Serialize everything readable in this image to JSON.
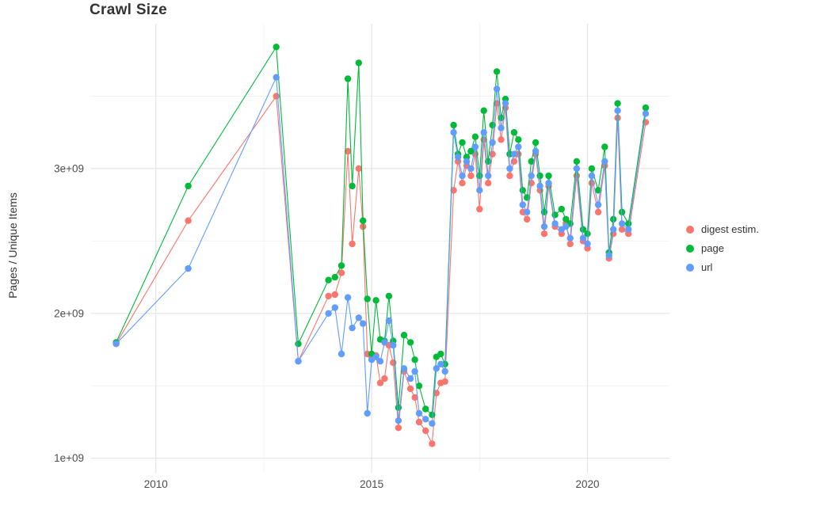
{
  "chart_data": {
    "type": "line",
    "title": "Crawl Size",
    "ylabel": "Pages / Unique Items",
    "xlabel": "",
    "legend_position": "right",
    "grid": true,
    "values_unit": "billions (1e+09)",
    "xlim": [
      2008.5,
      2021.9
    ],
    "ylim": [
      0.9,
      4.0
    ],
    "x_ticks": [
      {
        "v": 2010,
        "label": "2010"
      },
      {
        "v": 2015,
        "label": "2015"
      },
      {
        "v": 2020,
        "label": "2020"
      }
    ],
    "y_ticks": [
      {
        "v": 1,
        "label": "1e+09"
      },
      {
        "v": 2,
        "label": "2e+09"
      },
      {
        "v": 3,
        "label": "3e+09"
      }
    ],
    "x_minor": [
      2012.5,
      2017.5
    ],
    "y_minor": [
      1.5,
      2.5,
      3.5
    ],
    "x": [
      2009.08,
      2010.75,
      2012.79,
      2013.3,
      2014.0,
      2014.15,
      2014.3,
      2014.45,
      2014.55,
      2014.7,
      2014.8,
      2014.9,
      2015.0,
      2015.1,
      2015.2,
      2015.3,
      2015.4,
      2015.5,
      2015.62,
      2015.75,
      2015.9,
      2016.0,
      2016.1,
      2016.25,
      2016.4,
      2016.5,
      2016.6,
      2016.7,
      2016.9,
      2017.0,
      2017.1,
      2017.2,
      2017.3,
      2017.4,
      2017.5,
      2017.6,
      2017.7,
      2017.8,
      2017.9,
      2018.0,
      2018.1,
      2018.2,
      2018.3,
      2018.4,
      2018.5,
      2018.6,
      2018.7,
      2018.8,
      2018.9,
      2019.0,
      2019.1,
      2019.25,
      2019.4,
      2019.5,
      2019.6,
      2019.75,
      2019.9,
      2020.0,
      2020.1,
      2020.25,
      2020.4,
      2020.5,
      2020.6,
      2020.7,
      2020.8,
      2020.95,
      2021.35
    ],
    "series": [
      {
        "name": "digest estim.",
        "color": "#F8766D",
        "values": [
          1.79,
          2.64,
          3.5,
          1.67,
          2.12,
          2.13,
          2.28,
          3.12,
          2.48,
          3.0,
          2.6,
          1.72,
          1.7,
          1.71,
          1.52,
          1.55,
          1.78,
          1.66,
          1.21,
          1.6,
          1.48,
          1.42,
          1.25,
          1.19,
          1.1,
          1.45,
          1.52,
          1.53,
          2.85,
          3.05,
          2.9,
          3.02,
          2.95,
          3.1,
          2.72,
          3.2,
          2.9,
          3.1,
          3.45,
          3.2,
          3.42,
          2.95,
          3.05,
          3.1,
          2.7,
          2.65,
          2.9,
          3.1,
          2.85,
          2.55,
          2.88,
          2.6,
          2.55,
          2.62,
          2.48,
          2.95,
          2.5,
          2.45,
          2.9,
          2.7,
          3.02,
          2.38,
          2.55,
          3.35,
          2.58,
          2.55,
          3.32
        ]
      },
      {
        "name": "page",
        "color": "#00BA38",
        "values": [
          1.8,
          2.88,
          3.84,
          1.79,
          2.23,
          2.25,
          2.33,
          3.62,
          2.88,
          3.73,
          2.64,
          2.1,
          1.72,
          2.09,
          1.82,
          1.81,
          2.12,
          1.81,
          1.35,
          1.85,
          1.8,
          1.68,
          1.5,
          1.34,
          1.3,
          1.7,
          1.72,
          1.65,
          3.3,
          3.1,
          3.18,
          3.08,
          3.12,
          3.22,
          2.95,
          3.4,
          3.05,
          3.3,
          3.67,
          3.35,
          3.48,
          3.1,
          3.25,
          3.2,
          2.85,
          2.8,
          3.05,
          3.18,
          2.95,
          2.7,
          2.95,
          2.68,
          2.72,
          2.65,
          2.62,
          3.05,
          2.58,
          2.55,
          3.0,
          2.85,
          3.15,
          2.42,
          2.65,
          3.45,
          2.7,
          2.62,
          3.42
        ]
      },
      {
        "name": "url",
        "color": "#619CFF",
        "values": [
          1.79,
          2.31,
          3.63,
          1.67,
          2.0,
          2.04,
          1.72,
          2.11,
          1.9,
          1.97,
          1.93,
          1.31,
          1.68,
          1.7,
          1.67,
          1.8,
          1.95,
          1.78,
          1.26,
          1.62,
          1.55,
          1.6,
          1.31,
          1.27,
          1.24,
          1.62,
          1.65,
          1.6,
          3.25,
          3.08,
          2.95,
          3.05,
          3.0,
          3.15,
          2.85,
          3.25,
          2.95,
          3.18,
          3.55,
          3.28,
          3.45,
          3.0,
          3.1,
          3.15,
          2.75,
          2.7,
          2.95,
          3.12,
          2.88,
          2.6,
          2.9,
          2.62,
          2.58,
          2.6,
          2.52,
          3.0,
          2.52,
          2.48,
          2.95,
          2.75,
          3.05,
          2.4,
          2.58,
          3.4,
          2.62,
          2.58,
          3.38
        ]
      }
    ],
    "style": {
      "background": "#FFFFFF",
      "grid_major": "#E4E4E4",
      "grid_minor": "#F2F2F2",
      "tick_label_color": "#4D4D4D",
      "title_color": "#333333"
    }
  }
}
